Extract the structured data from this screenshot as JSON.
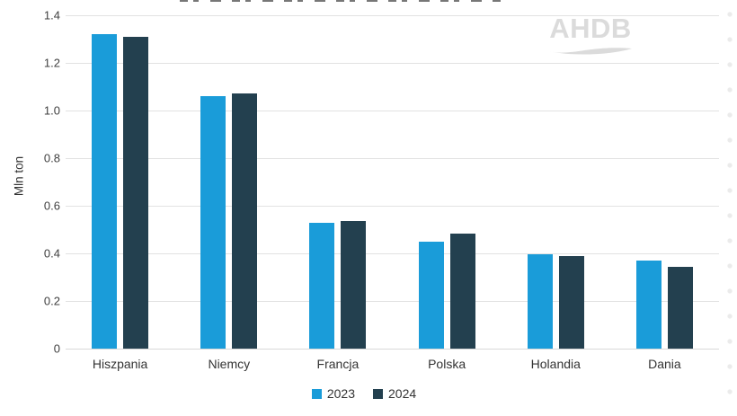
{
  "watermark": {
    "text": "AHDB"
  },
  "chart_data": {
    "type": "bar",
    "categories": [
      "Hiszpania",
      "Niemcy",
      "Francja",
      "Polska",
      "Holandia",
      "Dania"
    ],
    "series": [
      {
        "name": "2023",
        "color": "#1a9cd9",
        "values": [
          1.32,
          1.06,
          0.53,
          0.45,
          0.395,
          0.37
        ]
      },
      {
        "name": "2024",
        "color": "#23404f",
        "values": [
          1.31,
          1.07,
          0.535,
          0.485,
          0.39,
          0.345
        ]
      }
    ],
    "title": "",
    "xlabel": "",
    "ylabel": "Mln ton",
    "ylim": [
      0,
      1.4
    ],
    "yticks": [
      {
        "value": 1.4,
        "label": "1.4"
      },
      {
        "value": 1.2,
        "label": "1.2"
      },
      {
        "value": 1.0,
        "label": "1.0"
      },
      {
        "value": 0.8,
        "label": "0.8"
      },
      {
        "value": 0.6,
        "label": "0.6"
      },
      {
        "value": 0.4,
        "label": "0.4"
      },
      {
        "value": 0.2,
        "label": "0.2"
      },
      {
        "value": 0.0,
        "label": "0"
      }
    ],
    "grid": "horizontal",
    "legend_position": "bottom"
  }
}
